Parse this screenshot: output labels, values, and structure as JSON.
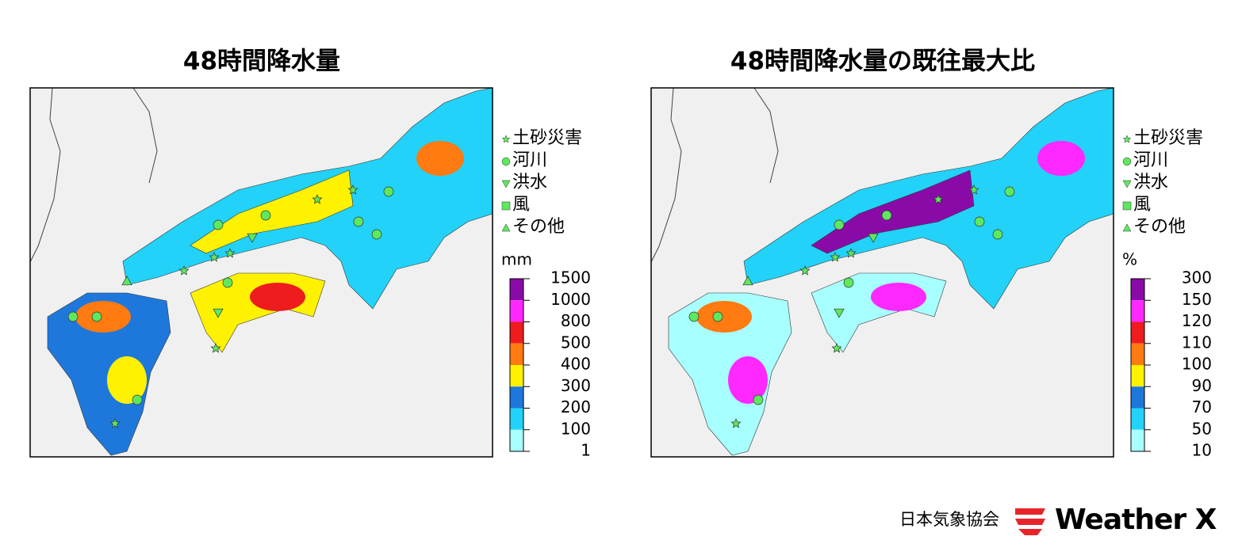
{
  "panels": [
    {
      "title": "48時間降水量",
      "legend": [
        {
          "marker": "star",
          "label": "土砂災害"
        },
        {
          "marker": "circle",
          "label": "河川"
        },
        {
          "marker": "triangle-down",
          "label": "洪水"
        },
        {
          "marker": "square",
          "label": "風"
        },
        {
          "marker": "triangle-up",
          "label": "その他"
        }
      ],
      "marker_color": "#5ee85e",
      "colorbar": {
        "unit": "mm",
        "ticks": [
          1500,
          1000,
          800,
          500,
          400,
          300,
          200,
          100,
          1
        ],
        "colors": [
          "#8a0aa8",
          "#ff28ff",
          "#ee1c1c",
          "#ff7a10",
          "#fff200",
          "#1e78dc",
          "#22d2f8",
          "#a8ffff"
        ]
      }
    },
    {
      "title": "48時間降水量の既往最大比",
      "legend": [
        {
          "marker": "star",
          "label": "土砂災害"
        },
        {
          "marker": "circle",
          "label": "河川"
        },
        {
          "marker": "triangle-down",
          "label": "洪水"
        },
        {
          "marker": "square",
          "label": "風"
        },
        {
          "marker": "triangle-up",
          "label": "その他"
        }
      ],
      "marker_color": "#5ee85e",
      "colorbar": {
        "unit": "%",
        "ticks": [
          300,
          150,
          120,
          110,
          100,
          90,
          70,
          50,
          10
        ],
        "colors": [
          "#8a0aa8",
          "#ff28ff",
          "#ee1c1c",
          "#ff7a10",
          "#fff200",
          "#1e78dc",
          "#22d2f8",
          "#a8ffff"
        ]
      }
    }
  ],
  "footer": {
    "org": "日本気象協会",
    "brand": "Weather X"
  }
}
